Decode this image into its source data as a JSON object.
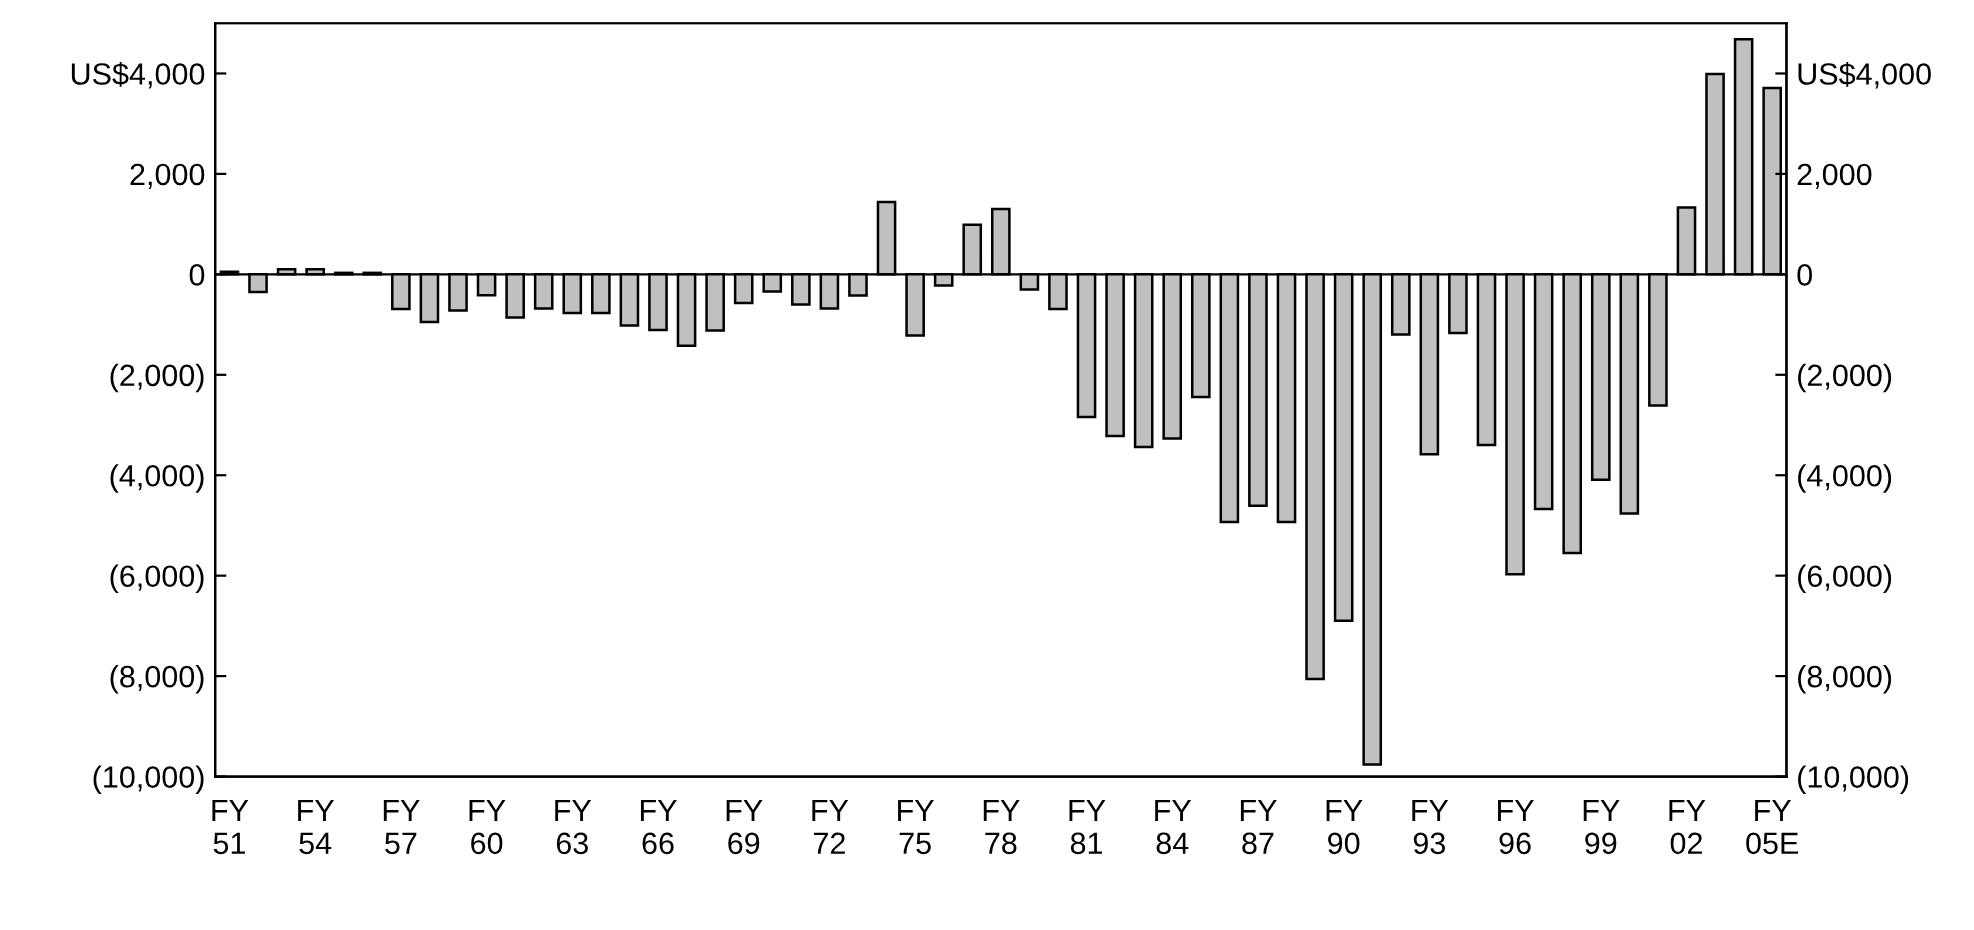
{
  "chart_data": {
    "type": "bar",
    "categories": [
      "FY\n51",
      null,
      null,
      "FY\n54",
      null,
      null,
      "FY\n57",
      null,
      null,
      "FY\n60",
      null,
      null,
      "FY\n63",
      null,
      null,
      "FY\n66",
      null,
      null,
      "FY\n69",
      null,
      null,
      "FY\n72",
      null,
      null,
      "FY\n75",
      null,
      null,
      "FY\n78",
      null,
      null,
      "FY\n81",
      null,
      null,
      "FY\n84",
      null,
      null,
      "FY\n87",
      null,
      null,
      "FY\n90",
      null,
      null,
      "FY\n93",
      null,
      null,
      "FY\n96",
      null,
      null,
      "FY\n99",
      null,
      null,
      "FY\n02",
      null,
      null,
      "FY\n05E"
    ],
    "series": [
      {
        "color": "#c0c0c0",
        "values": [
          50,
          -350,
          100,
          100,
          30,
          30,
          -690,
          -950,
          -720,
          -415,
          -860,
          -680,
          -770,
          -770,
          -1020,
          -1110,
          -1420,
          -1120,
          -570,
          -340,
          -600,
          -680,
          -420,
          1440,
          -1220,
          -220,
          990,
          1300,
          -300,
          -690,
          -2840,
          -3220,
          -3440,
          -3270,
          -2440,
          -4930,
          -4610,
          -4930,
          -8060,
          -6900,
          -9760,
          -1200,
          -3580,
          -1170,
          -3400,
          -5970,
          -4670,
          -5550,
          -4090,
          -4760,
          -2610,
          1330,
          3990,
          4680,
          3710
        ]
      }
    ],
    "ylim": [
      -10000,
      5000
    ],
    "yticks": [
      {
        "value": 4000,
        "label": "US$4,000"
      },
      {
        "value": 2000,
        "label": "2,000"
      },
      0,
      {
        "value": -2000,
        "label": "(2,000)"
      },
      {
        "value": -4000,
        "label": "(4,000)"
      },
      {
        "value": -6000,
        "label": "(6,000)"
      },
      {
        "value": -8000,
        "label": "(8,000)"
      },
      {
        "value": -10000,
        "label": "(10,000)"
      }
    ],
    "y2lim": [
      -10000,
      5000
    ],
    "y2ticks": [
      {
        "value": 4000,
        "label": "US$4,000"
      },
      {
        "value": 2000,
        "label": "2,000"
      },
      0,
      {
        "value": -2000,
        "label": "(2,000)"
      },
      {
        "value": -4000,
        "label": "(4,000)"
      },
      {
        "value": -6000,
        "label": "(6,000)"
      },
      {
        "value": -8000,
        "label": "(8,000)"
      },
      {
        "value": -10000,
        "label": "(10,000)"
      }
    ],
    "ref_lines": [
      {
        "axis": "y",
        "value": 0,
        "color": "#000000"
      }
    ],
    "grid": false,
    "legend": false
  }
}
